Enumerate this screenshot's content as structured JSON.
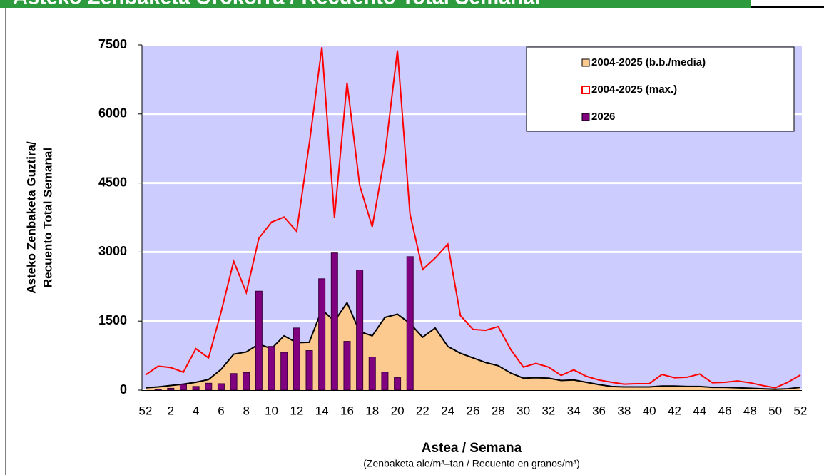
{
  "chart_data": {
    "type": "combo",
    "title": "Asteko Zenbaketa Orokorra / Recuento Total Semanal",
    "y_label": [
      "Asteko Zenbaketa Guztira/",
      "Recuento Total Semanal"
    ],
    "x_label": "Astea / Semana",
    "x_sublabel": "(Zenbaketa ale/m³–tan / Recuento en granos/m³)",
    "categories": [
      "52",
      null,
      "2",
      null,
      "4",
      null,
      "6",
      null,
      "8",
      null,
      "10",
      null,
      "12",
      null,
      "14",
      null,
      "16",
      null,
      "18",
      null,
      "20",
      null,
      "22",
      null,
      "24",
      null,
      "26",
      null,
      "28",
      null,
      "30",
      null,
      "32",
      null,
      "34",
      null,
      "36",
      null,
      "38",
      null,
      "40",
      null,
      "42",
      null,
      "44",
      null,
      "46",
      null,
      "48",
      null,
      "50",
      null,
      "52"
    ],
    "ylim": [
      0,
      7500
    ],
    "yticks": [
      0,
      1500,
      3000,
      4500,
      6000,
      7500
    ],
    "grid": true,
    "legend": "upper right",
    "series": [
      {
        "name": "2004-2025 (b.b./media)",
        "type": "area",
        "color": "#fcc98f",
        "values": [
          50,
          70,
          100,
          130,
          170,
          230,
          450,
          780,
          830,
          1000,
          900,
          1180,
          1030,
          1040,
          1750,
          1500,
          1900,
          1270,
          1180,
          1580,
          1650,
          1450,
          1150,
          1350,
          950,
          800,
          700,
          600,
          530,
          370,
          260,
          270,
          260,
          210,
          220,
          170,
          120,
          80,
          70,
          70,
          70,
          90,
          90,
          80,
          80,
          60,
          60,
          50,
          40,
          30,
          20,
          30,
          60
        ]
      },
      {
        "name": "2004-2025 (max.)",
        "type": "line",
        "color": "#ff0000",
        "values": [
          330,
          520,
          490,
          390,
          900,
          700,
          1700,
          2800,
          2120,
          3300,
          3650,
          3760,
          3450,
          5350,
          7450,
          3750,
          6680,
          4450,
          3550,
          5100,
          7380,
          3820,
          2620,
          2870,
          3170,
          1620,
          1320,
          1300,
          1380,
          880,
          500,
          580,
          500,
          320,
          440,
          300,
          220,
          170,
          130,
          140,
          140,
          340,
          270,
          280,
          350,
          160,
          170,
          200,
          160,
          100,
          50,
          170,
          330
        ]
      },
      {
        "name": "2026",
        "type": "bar",
        "color": "#800080",
        "values": [
          null,
          20,
          40,
          120,
          80,
          150,
          140,
          360,
          380,
          2150,
          950,
          820,
          1350,
          860,
          2420,
          2980,
          1060,
          2610,
          720,
          390,
          270,
          2900,
          null,
          null,
          null,
          null,
          null,
          null,
          null,
          null,
          null,
          null,
          null,
          null,
          null,
          null,
          null,
          null,
          null,
          null,
          null,
          null,
          null,
          null,
          null,
          null,
          null,
          null,
          null,
          null,
          null,
          null,
          null
        ]
      }
    ]
  }
}
